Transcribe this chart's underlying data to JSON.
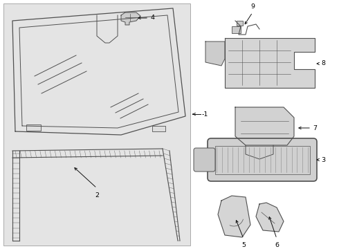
{
  "bg_color": "#ffffff",
  "panel_bg": "#e8e8e8",
  "lc": "#505050",
  "lw": 0.9,
  "fig_w": 4.9,
  "fig_h": 3.6,
  "dpi": 100
}
